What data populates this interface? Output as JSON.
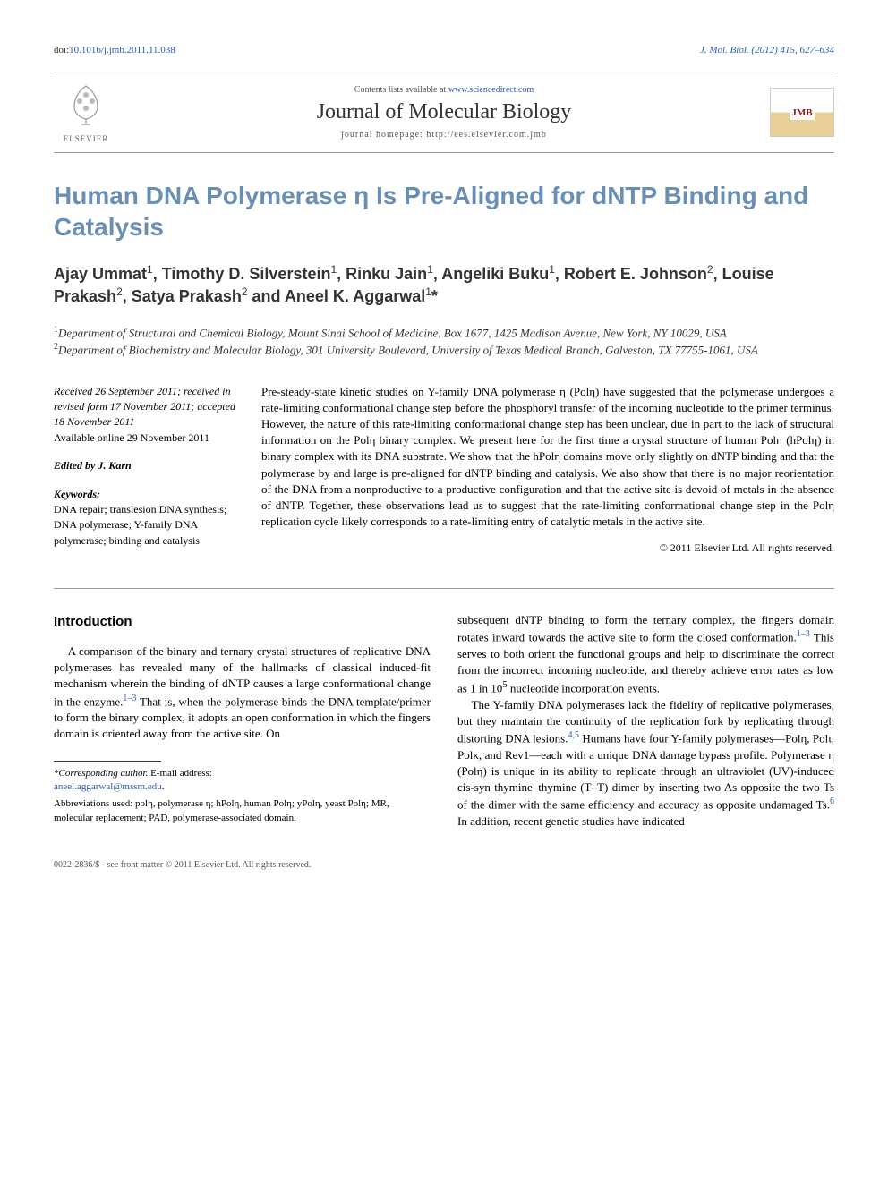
{
  "header": {
    "doi_prefix": "doi:",
    "doi": "10.1016/j.jmb.2011.11.038",
    "journal_ref": "J. Mol. Biol. (2012) 415, 627–634",
    "contents_text": "Contents lists available at ",
    "contents_link": "www.sciencedirect.com",
    "journal_name": "Journal of Molecular Biology",
    "homepage_text": "journal homepage: http://ees.elsevier.com.jmb",
    "elsevier_label": "ELSEVIER",
    "jmb_label": "JMB"
  },
  "title": "Human DNA Polymerase η Is Pre-Aligned for dNTP Binding and Catalysis",
  "authors_html": "Ajay Ummat<sup>1</sup>, Timothy D. Silverstein<sup>1</sup>, Rinku Jain<sup>1</sup>, Angeliki Buku<sup>1</sup>, Robert E. Johnson<sup>2</sup>, Louise Prakash<sup>2</sup>, Satya Prakash<sup>2</sup> and Aneel K. Aggarwal<sup>1</sup>*",
  "affiliations": {
    "a1": "Department of Structural and Chemical Biology, Mount Sinai School of Medicine, Box 1677, 1425 Madison Avenue, New York, NY 10029, USA",
    "a2": "Department of Biochemistry and Molecular Biology, 301 University Boulevard, University of Texas Medical Branch, Galveston, TX 77755-1061, USA"
  },
  "meta": {
    "dates": "Received 26 September 2011; received in revised form 17 November 2011; accepted 18 November 2011",
    "available": "Available online 29 November 2011",
    "edited": "Edited by J. Karn",
    "kw_heading": "Keywords:",
    "keywords": "DNA repair; translesion DNA synthesis; DNA polymerase; Y-family DNA polymerase; binding and catalysis"
  },
  "abstract": "Pre-steady-state kinetic studies on Y-family DNA polymerase η (Polη) have suggested that the polymerase undergoes a rate-limiting conformational change step before the phosphoryl transfer of the incoming nucleotide to the primer terminus. However, the nature of this rate-limiting conformational change step has been unclear, due in part to the lack of structural information on the Polη binary complex. We present here for the first time a crystal structure of human Polη (hPolη) in binary complex with its DNA substrate. We show that the hPolη domains move only slightly on dNTP binding and that the polymerase by and large is pre-aligned for dNTP binding and catalysis. We also show that there is no major reorientation of the DNA from a nonproductive to a productive configuration and that the active site is devoid of metals in the absence of dNTP. Together, these observations lead us to suggest that the rate-limiting conformational change step in the Polη replication cycle likely corresponds to a rate-limiting entry of catalytic metals in the active site.",
  "copyright": "© 2011 Elsevier Ltd. All rights reserved.",
  "introduction": {
    "heading": "Introduction",
    "p1_a": "A comparison of the binary and ternary crystal structures of replicative DNA polymerases has revealed many of the hallmarks of classical induced-fit mechanism wherein the binding of dNTP causes a large conformational change in the enzyme.",
    "p1_ref1": "1–3",
    "p1_b": " That is, when the polymerase binds the DNA template/primer to form the binary complex, it adopts an open conformation in which the fingers domain is oriented away from the active site. On",
    "p2_a": "subsequent dNTP binding to form the ternary complex, the fingers domain rotates inward towards the active site to form the closed conformation.",
    "p2_ref1": "1–3",
    "p2_b": " This serves to both orient the functional groups and help to discriminate the correct from the incorrect incoming nucleotide, and thereby achieve error rates as low as 1 in 10",
    "p2_exp": "5",
    "p2_c": " nucleotide incorporation events.",
    "p3_a": "The Y-family DNA polymerases lack the fidelity of replicative polymerases, but they maintain the continuity of the replication fork by replicating through distorting DNA lesions.",
    "p3_ref1": "4,5",
    "p3_b": " Humans have four Y-family polymerases—Polη, Polι, Polκ, and Rev1—each with a unique DNA damage bypass profile. Polymerase η (Polη) is unique in its ability to replicate through an ultraviolet (UV)-induced cis-syn thymine–thymine (T–T) dimer by inserting two As opposite the two Ts of the dimer with the same efficiency and accuracy as opposite undamaged Ts.",
    "p3_ref2": "6",
    "p3_c": " In addition, recent genetic studies have indicated"
  },
  "footnotes": {
    "corr_label": "*Corresponding author.",
    "email_label": " E-mail address:",
    "email": "aneel.aggarwal@mssm.edu",
    "abbrev": "Abbreviations used: polη, polymerase η; hPolη, human Polη; yPolη, yeast Polη; MR, molecular replacement; PAD, polymerase-associated domain."
  },
  "footer": "0022-2836/$ - see front matter © 2011 Elsevier Ltd. All rights reserved.",
  "colors": {
    "title_color": "#6a8fb5",
    "link_color": "#2a5db0",
    "elsevier_orange": "#e67817"
  }
}
